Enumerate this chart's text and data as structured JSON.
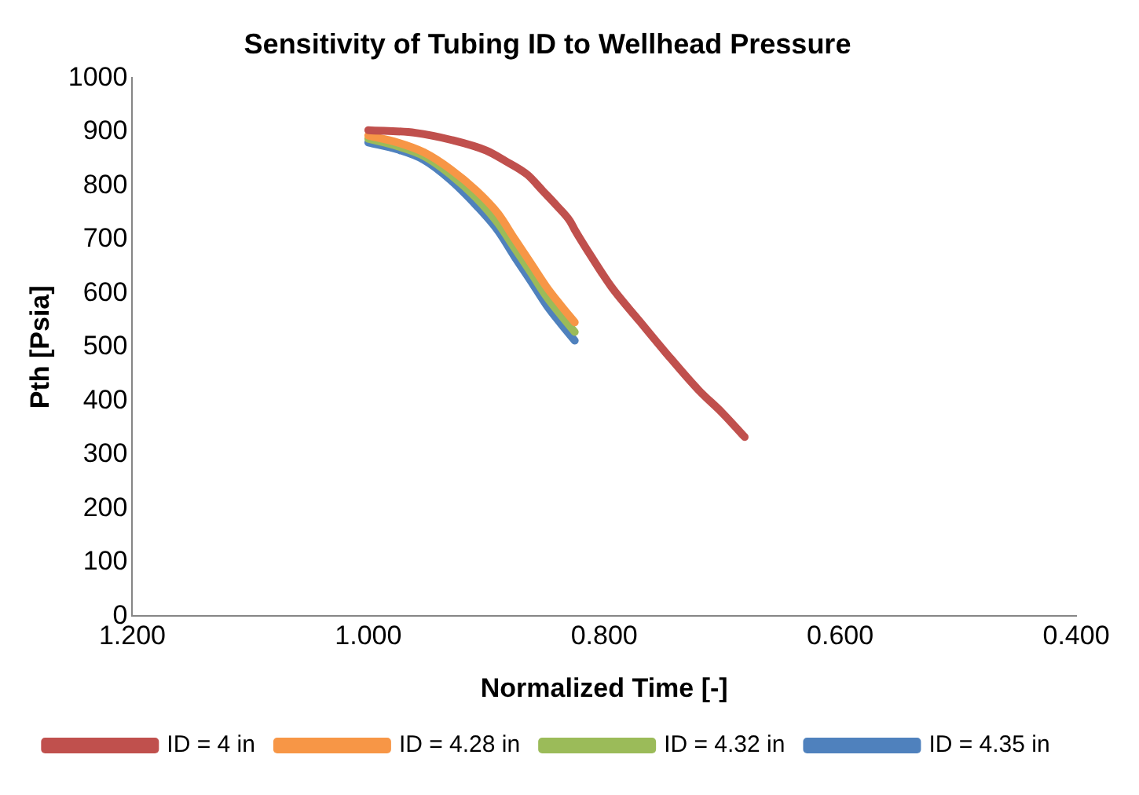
{
  "chart_data": {
    "type": "line",
    "title": "Sensitivity of Tubing ID to Wellhead Pressure",
    "xlabel": "Normalized Time [-]",
    "ylabel": "Pth [Psia]",
    "xlim": [
      1.2,
      0.4
    ],
    "xticks": [
      {
        "value": 1.2,
        "label": "1.200"
      },
      {
        "value": 1.0,
        "label": "1.000"
      },
      {
        "value": 0.8,
        "label": "0.800"
      },
      {
        "value": 0.6,
        "label": "0.600"
      },
      {
        "value": 0.4,
        "label": "0.400"
      }
    ],
    "ylim": [
      0,
      1000
    ],
    "yticks": [
      0,
      100,
      200,
      300,
      400,
      500,
      600,
      700,
      800,
      900,
      1000
    ],
    "grid": false,
    "legend": "bottom",
    "marker": "none",
    "line_style": "solid",
    "series": [
      {
        "name": "ID = 4 in",
        "color": "#c0504d",
        "x": [
          1.0,
          0.96,
          0.93,
          0.9,
          0.884,
          0.865,
          0.852,
          0.84,
          0.829,
          0.825,
          0.81,
          0.794,
          0.77,
          0.748,
          0.72,
          0.7,
          0.681
        ],
        "values": [
          903,
          898,
          885,
          865,
          846,
          820,
          790,
          762,
          734,
          718,
          665,
          612,
          548,
          490,
          420,
          378,
          333
        ]
      },
      {
        "name": "ID = 4.28 in",
        "color": "#f79646",
        "x": [
          1.0,
          0.975,
          0.953,
          0.93,
          0.908,
          0.89,
          0.876,
          0.862,
          0.849,
          0.837,
          0.825
        ],
        "values": [
          893,
          880,
          862,
          830,
          790,
          748,
          701,
          655,
          612,
          578,
          546
        ]
      },
      {
        "name": "ID = 4.32 in",
        "color": "#9bbb59",
        "x": [
          1.0,
          0.975,
          0.953,
          0.93,
          0.908,
          0.89,
          0.876,
          0.862,
          0.849,
          0.837,
          0.825
        ],
        "values": [
          887,
          873,
          855,
          820,
          776,
          730,
          684,
          638,
          594,
          560,
          528
        ]
      },
      {
        "name": "ID = 4.35 in",
        "color": "#4f81bd",
        "x": [
          1.0,
          0.975,
          0.953,
          0.93,
          0.908,
          0.89,
          0.876,
          0.862,
          0.849,
          0.837,
          0.825
        ],
        "values": [
          880,
          867,
          848,
          810,
          762,
          716,
          668,
          622,
          578,
          544,
          512
        ]
      }
    ]
  }
}
